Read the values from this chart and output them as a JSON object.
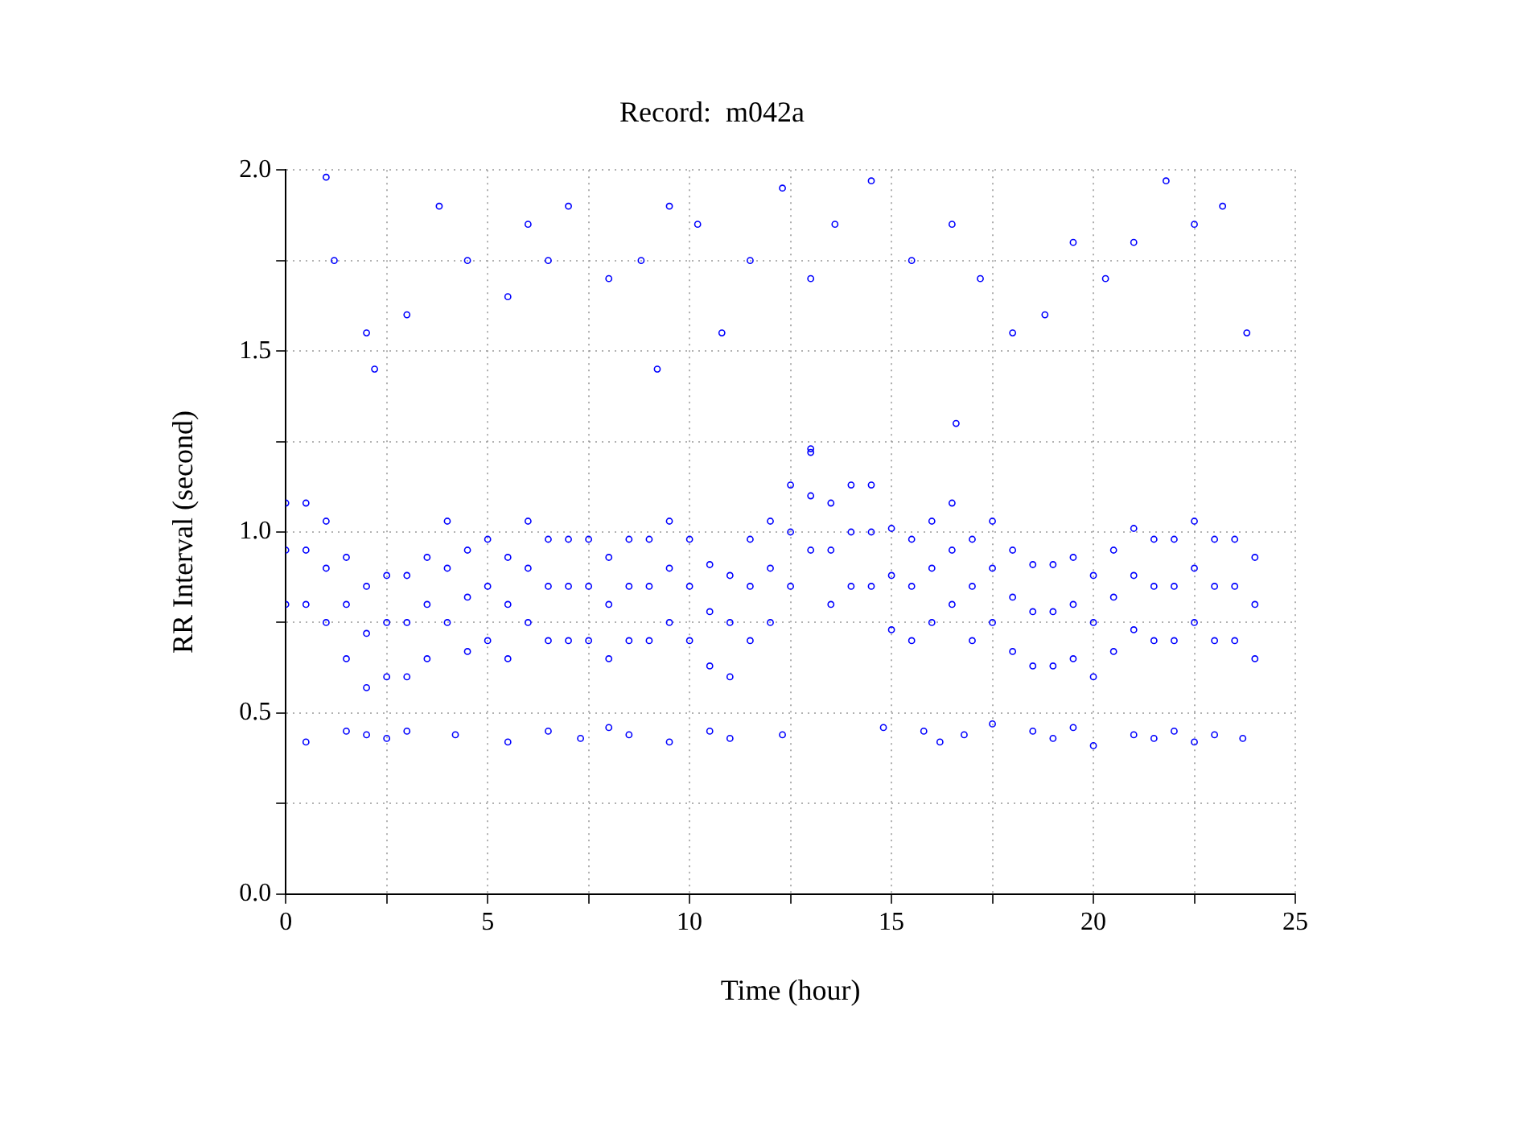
{
  "chart_data": {
    "type": "scatter",
    "title": "Record:  m042a",
    "xlabel": "Time (hour)",
    "ylabel": "RR Interval (second)",
    "xlim": [
      0,
      25
    ],
    "ylim": [
      0,
      2
    ],
    "xticks": [
      0,
      {
        "value": 2.5,
        "label": null
      },
      5,
      {
        "value": 7.5,
        "label": null
      },
      10,
      {
        "value": 12.5,
        "label": null
      },
      15,
      {
        "value": 17.5,
        "label": null
      },
      20,
      {
        "value": 22.5,
        "label": null
      },
      25
    ],
    "yticks": [
      {
        "value": 0,
        "label": "0.0"
      },
      {
        "value": 0.25,
        "label": null
      },
      {
        "value": 0.5,
        "label": "0.5"
      },
      {
        "value": 0.75,
        "label": null
      },
      {
        "value": 1,
        "label": "1.0"
      },
      {
        "value": 1.25,
        "label": null
      },
      {
        "value": 1.5,
        "label": "1.5"
      },
      {
        "value": 1.75,
        "label": null
      },
      {
        "value": 2,
        "label": "2.0"
      }
    ],
    "grid": true,
    "legend": false,
    "marker": "circle",
    "series": [
      {
        "color": "#0000ff",
        "x": [
          0,
          0.5,
          1,
          1.5,
          2,
          2.5,
          3,
          3.5,
          4,
          4.5,
          5,
          5.5,
          6,
          6.5,
          7,
          7.5,
          8,
          8.5,
          9,
          9.5,
          10,
          10.5,
          11,
          11.5,
          12,
          12.5,
          13,
          13.5,
          14,
          14.5,
          15,
          15.5,
          16,
          16.5,
          17,
          17.5,
          18,
          18.5,
          19,
          19.5,
          20,
          20.5,
          21,
          21.5,
          22,
          22.5,
          23,
          23.5,
          24
        ],
        "values": [
          0.95,
          0.95,
          0.9,
          0.8,
          0.72,
          0.75,
          0.75,
          0.8,
          0.9,
          0.82,
          0.85,
          0.8,
          0.9,
          0.85,
          0.85,
          0.85,
          0.8,
          0.85,
          0.85,
          0.9,
          0.85,
          0.78,
          0.75,
          0.85,
          0.9,
          1.0,
          1.1,
          0.95,
          1.0,
          1.0,
          0.88,
          0.85,
          0.9,
          0.95,
          0.85,
          0.9,
          0.82,
          0.78,
          0.78,
          0.8,
          0.75,
          0.82,
          0.88,
          0.85,
          0.85,
          0.9,
          0.85,
          0.85,
          0.8
        ]
      },
      {
        "color": "#0000ff",
        "x": [
          0,
          0.5,
          1,
          1.5,
          2,
          2.5,
          3,
          3.5,
          4,
          4.5,
          5,
          5.5,
          6,
          6.5,
          7,
          7.5,
          8,
          8.5,
          9,
          9.5,
          10,
          10.5,
          11,
          11.5,
          12,
          12.5,
          13,
          13.5,
          14,
          14.5,
          15,
          15.5,
          16,
          16.5,
          17,
          17.5,
          18,
          18.5,
          19,
          19.5,
          20,
          20.5,
          21,
          21.5,
          22,
          22.5,
          23,
          23.5,
          24
        ],
        "values": [
          1.08,
          1.08,
          1.03,
          0.93,
          0.85,
          0.88,
          0.88,
          0.93,
          1.03,
          0.95,
          0.98,
          0.93,
          1.03,
          0.98,
          0.98,
          0.98,
          0.93,
          0.98,
          0.98,
          1.03,
          0.98,
          0.91,
          0.88,
          0.98,
          1.03,
          1.13,
          1.23,
          1.08,
          1.13,
          1.13,
          1.01,
          0.98,
          1.03,
          1.08,
          0.98,
          1.03,
          0.95,
          0.91,
          0.91,
          0.93,
          0.88,
          0.95,
          1.01,
          0.98,
          0.98,
          1.03,
          0.98,
          0.98,
          0.93
        ]
      },
      {
        "color": "#0000ff",
        "x": [
          0,
          0.5,
          1,
          1.5,
          2,
          2.5,
          3,
          3.5,
          4,
          4.5,
          5,
          5.5,
          6,
          6.5,
          7,
          7.5,
          8,
          8.5,
          9,
          9.5,
          10,
          10.5,
          11,
          11.5,
          12,
          12.5,
          13,
          13.5,
          14,
          14.5,
          15,
          15.5,
          16,
          16.5,
          17,
          17.5,
          18,
          18.5,
          19,
          19.5,
          20,
          20.5,
          21,
          21.5,
          22,
          22.5,
          23,
          23.5,
          24
        ],
        "values": [
          0.8,
          0.8,
          0.75,
          0.65,
          0.57,
          0.6,
          0.6,
          0.65,
          0.75,
          0.67,
          0.7,
          0.65,
          0.75,
          0.7,
          0.7,
          0.7,
          0.65,
          0.7,
          0.7,
          0.75,
          0.7,
          0.63,
          0.6,
          0.7,
          0.75,
          0.85,
          0.95,
          0.8,
          0.85,
          0.85,
          0.73,
          0.7,
          0.75,
          0.8,
          0.7,
          0.75,
          0.67,
          0.63,
          0.63,
          0.65,
          0.6,
          0.67,
          0.73,
          0.7,
          0.7,
          0.75,
          0.7,
          0.7,
          0.65
        ]
      },
      {
        "color": "#0000ff",
        "x": [
          0.5,
          1.5,
          2,
          2.5,
          3,
          4.2,
          5.5,
          6.5,
          7.3,
          8,
          8.5,
          9.5,
          10.5,
          11,
          12.3,
          14.8,
          15.8,
          16.2,
          16.8,
          17.5,
          18.5,
          19,
          19.5,
          20,
          21,
          21.5,
          22,
          22.5,
          23,
          23.7,
          16.6,
          13
        ],
        "values": [
          0.42,
          0.45,
          0.44,
          0.43,
          0.45,
          0.44,
          0.42,
          0.45,
          0.43,
          0.46,
          0.44,
          0.42,
          0.45,
          0.43,
          0.44,
          0.46,
          0.45,
          0.42,
          0.44,
          0.47,
          0.45,
          0.43,
          0.46,
          0.41,
          0.44,
          0.43,
          0.45,
          0.42,
          0.44,
          0.43,
          1.3,
          1.22
        ]
      },
      {
        "color": "#0000ff",
        "x": [
          1,
          1.2,
          2,
          3,
          3.8,
          4.5,
          5.5,
          6,
          6.5,
          7,
          8,
          8.8,
          9.5,
          10.2,
          10.8,
          11.5,
          12.3,
          13,
          13.6,
          14.5,
          15.5,
          16.5,
          17.2,
          18,
          18.8,
          19.5,
          20.3,
          21,
          21.8,
          22.5,
          23.2,
          23.8,
          2.2,
          9.2
        ],
        "values": [
          1.98,
          1.75,
          1.55,
          1.6,
          1.9,
          1.75,
          1.65,
          1.85,
          1.75,
          1.9,
          1.7,
          1.75,
          1.9,
          1.85,
          1.55,
          1.75,
          1.95,
          1.7,
          1.85,
          1.97,
          1.75,
          1.85,
          1.7,
          1.55,
          1.6,
          1.8,
          1.7,
          1.8,
          1.97,
          1.85,
          1.9,
          1.55,
          1.45,
          1.45
        ]
      }
    ]
  }
}
